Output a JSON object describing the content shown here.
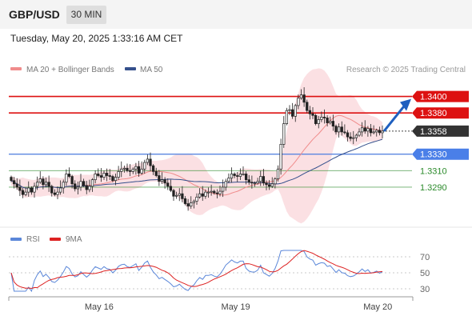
{
  "header": {
    "symbol": "GBP/USD",
    "timeframe": "30 MIN"
  },
  "timestamp": "Tuesday, May 20, 2025 1:33:16 AM CET",
  "legend": {
    "ma20_label": "MA 20 + Bollinger Bands",
    "ma50_label": "MA 50",
    "ma20_color": "#f08c8c",
    "ma50_color": "#35508c",
    "copyright": "Research © 2025 Trading Central"
  },
  "rsi_legend": {
    "rsi_label": "RSI",
    "ma_label": "9MA",
    "rsi_color": "#5b87d9",
    "ma_color": "#dd2222"
  },
  "colors": {
    "resistance": "#dd1111",
    "pivot": "#5b87e0",
    "support": "#2a8a2a",
    "current_tag": "#333333",
    "arrow": "#1f5fbf",
    "band_fill": "#fbe0e3"
  },
  "chart_data": [
    {
      "type": "candlestick",
      "series": [
        {
          "name": "MA 20 + Bollinger Bands"
        },
        {
          "name": "MA 50"
        }
      ],
      "x_ticks": [
        "May 16",
        "May 19",
        "May 20"
      ],
      "ylim": [
        1.3255,
        1.342
      ],
      "current_price": "1.3358",
      "levels": [
        {
          "label": "1.3400",
          "value": 1.34,
          "kind": "resistance"
        },
        {
          "label": "1.3380",
          "value": 1.338,
          "kind": "resistance"
        },
        {
          "label": "1.3358",
          "value": 1.3358,
          "kind": "current"
        },
        {
          "label": "1.3330",
          "value": 1.333,
          "kind": "pivot"
        },
        {
          "label": "1.3310",
          "value": 1.331,
          "kind": "support"
        },
        {
          "label": "1.3290",
          "value": 1.329,
          "kind": "support"
        }
      ],
      "forecast_target": 1.34,
      "closes": [
        1.3298,
        1.3294,
        1.329,
        1.3286,
        1.3281,
        1.3284,
        1.3289,
        1.3284,
        1.3291,
        1.3296,
        1.33,
        1.3293,
        1.3296,
        1.3291,
        1.3283,
        1.3281,
        1.3284,
        1.3289,
        1.3296,
        1.3306,
        1.3303,
        1.3294,
        1.3288,
        1.329,
        1.3297,
        1.3292,
        1.3287,
        1.3291,
        1.3299,
        1.3306,
        1.3304,
        1.3302,
        1.3307,
        1.3304,
        1.3303,
        1.3298,
        1.3302,
        1.3309,
        1.3312,
        1.3313,
        1.331,
        1.3309,
        1.3312,
        1.3315,
        1.3307,
        1.3312,
        1.332,
        1.3324,
        1.3316,
        1.3309,
        1.3304,
        1.3297,
        1.3299,
        1.3295,
        1.3291,
        1.3286,
        1.3279,
        1.328,
        1.3282,
        1.3276,
        1.327,
        1.3267,
        1.3271,
        1.3273,
        1.3278,
        1.3282,
        1.3279,
        1.3284,
        1.3284,
        1.3285,
        1.3283,
        1.3282,
        1.3285,
        1.329,
        1.3297,
        1.3301,
        1.3306,
        1.3304,
        1.3303,
        1.3306,
        1.3306,
        1.3299,
        1.3296,
        1.3295,
        1.3295,
        1.3297,
        1.3303,
        1.3295,
        1.3293,
        1.3291,
        1.3294,
        1.33,
        1.3312,
        1.3342,
        1.3367,
        1.3383,
        1.3384,
        1.3376,
        1.3389,
        1.3398,
        1.3402,
        1.3393,
        1.3383,
        1.3379,
        1.3377,
        1.3367,
        1.3372,
        1.3375,
        1.3374,
        1.3368,
        1.337,
        1.3364,
        1.3357,
        1.3363,
        1.3357,
        1.3356,
        1.3351,
        1.3349,
        1.335,
        1.3353,
        1.3357,
        1.3362,
        1.3358,
        1.3361,
        1.3356,
        1.3357,
        1.3359,
        1.3356,
        1.3358
      ],
      "rsi": {
        "ylim": [
          25,
          80
        ],
        "ticks": [
          70,
          50,
          30
        ],
        "levels": [
          30,
          50,
          70
        ]
      }
    }
  ]
}
